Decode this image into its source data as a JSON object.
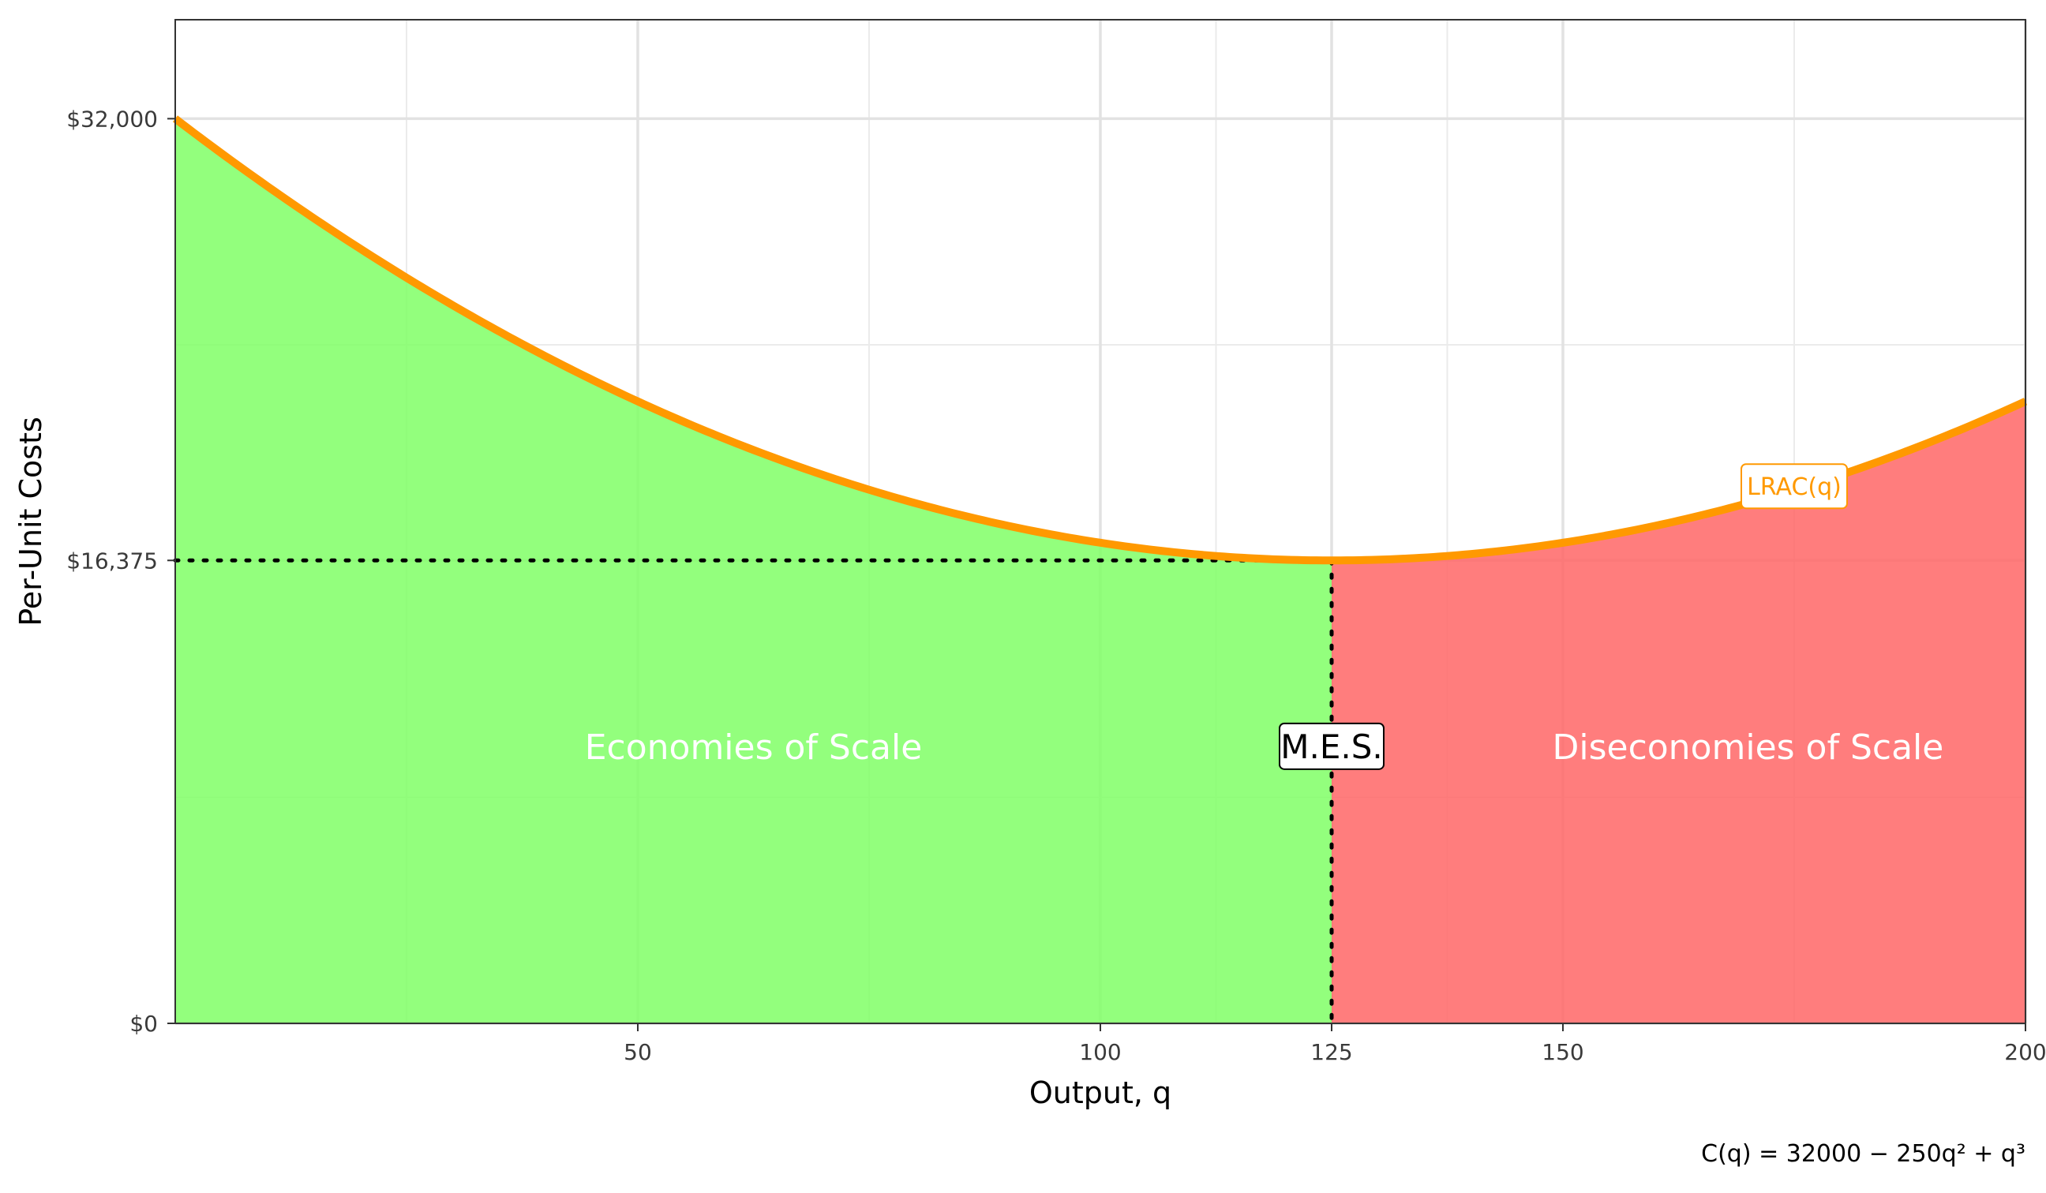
{
  "chart_data": {
    "type": "area",
    "xlabel": "Output, q",
    "ylabel": "Per-Unit Costs",
    "xlim": [
      0,
      200
    ],
    "ylim": [
      0,
      35500
    ],
    "x_ticks": [
      {
        "value": 50,
        "label": "50"
      },
      {
        "value": 100,
        "label": "100"
      },
      {
        "value": 125,
        "label": "125"
      },
      {
        "value": 150,
        "label": "150"
      },
      {
        "value": 200,
        "label": "200"
      }
    ],
    "x_minor_grid": [
      25,
      75,
      112.5,
      137.5,
      175
    ],
    "y_ticks": [
      {
        "value": 0,
        "label": "$0"
      },
      {
        "value": 16375,
        "label": "$16,375"
      },
      {
        "value": 32000,
        "label": "$32,000"
      }
    ],
    "y_minor_grid": [
      8000,
      24000
    ],
    "grid": true,
    "curve": {
      "label": "LRAC(q)",
      "color": "#ff9900",
      "formula": {
        "a": 32000,
        "b": -250,
        "c": 1
      }
    },
    "min_efficient_scale": {
      "q": 125,
      "cost": 16375,
      "label": "M.E.S.",
      "label_y": 9800
    },
    "regions": [
      {
        "label": "Economies of Scale",
        "from": 0,
        "to": 125,
        "color": "#80ff66",
        "label_x": 62.5,
        "label_y": 9800
      },
      {
        "label": "Diseconomies of Scale",
        "from": 125,
        "to": 200,
        "color": "#ff6666",
        "label_x": 170,
        "label_y": 9800
      }
    ],
    "curve_label_position": {
      "x": 175,
      "y": 19000
    },
    "caption": "C(q) = 32000 − 250q² + q³"
  }
}
